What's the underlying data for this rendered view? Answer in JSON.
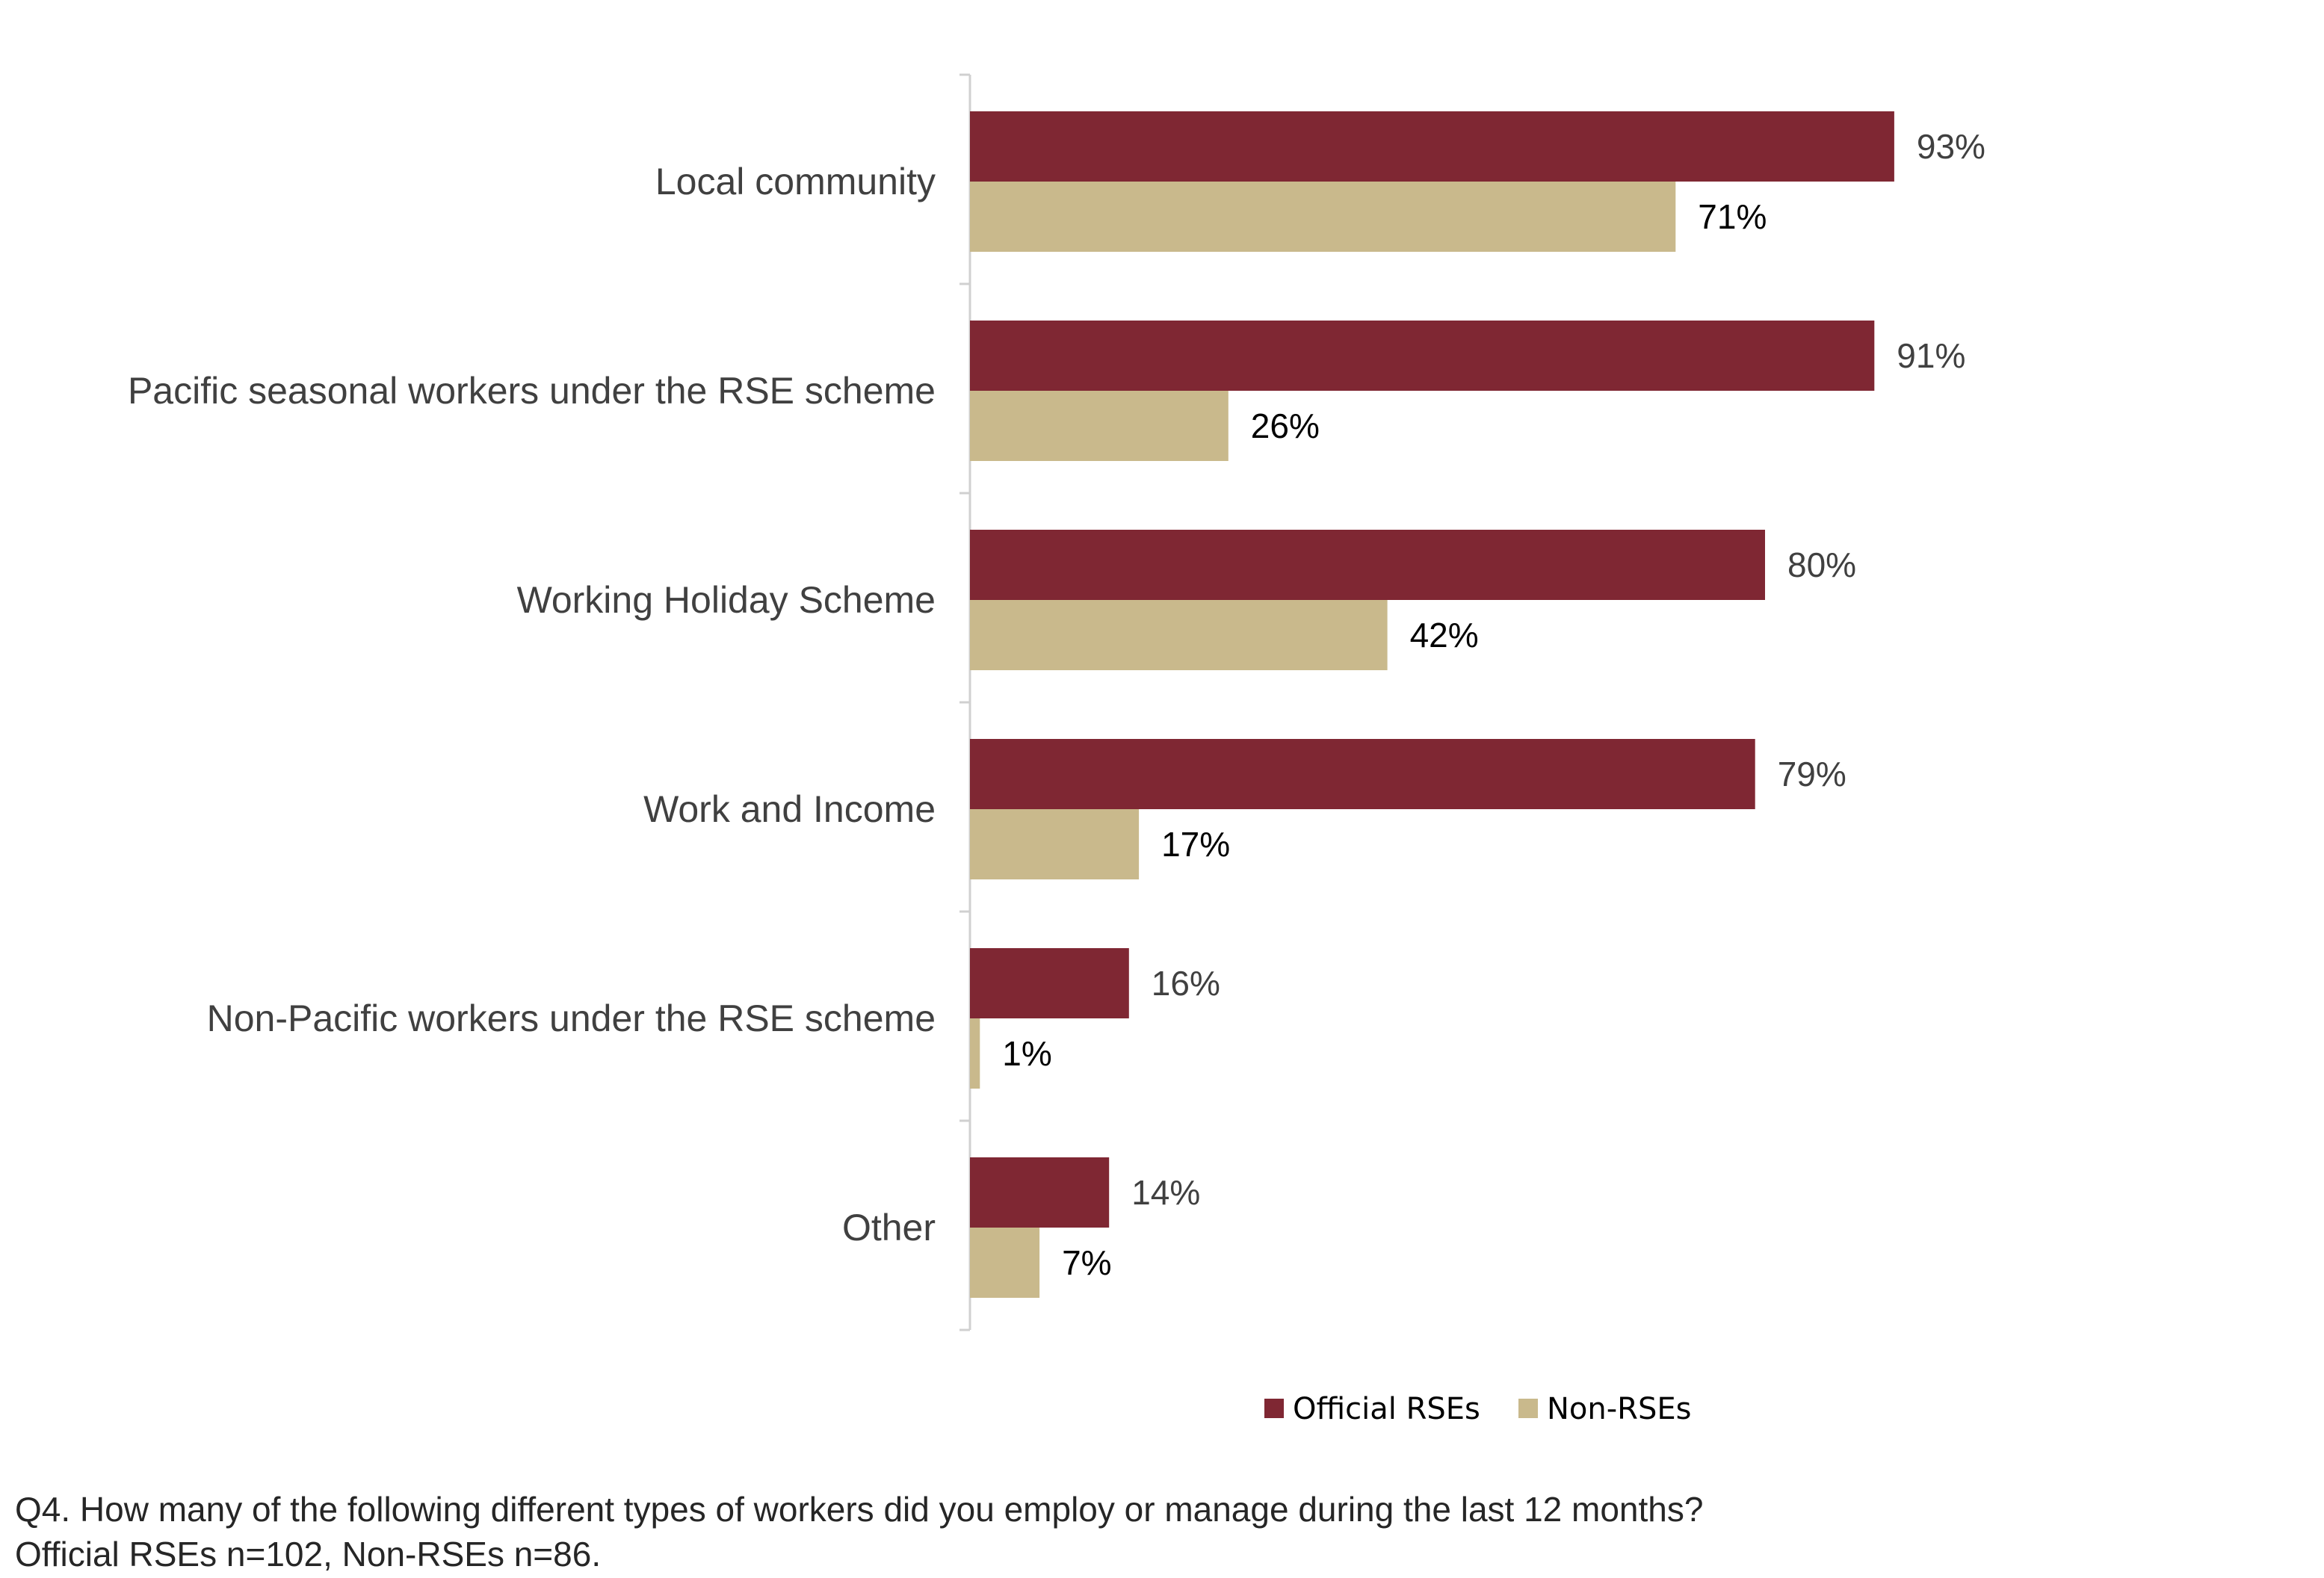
{
  "chart_data": {
    "type": "bar",
    "orientation": "horizontal",
    "categories": [
      "Local community",
      "Pacific seasonal workers under the RSE scheme",
      "Working Holiday Scheme",
      "Work and Income",
      "Non-Pacific workers under the RSE scheme",
      "Other"
    ],
    "series": [
      {
        "name": "Official RSEs",
        "color": "#7f2733",
        "values": [
          93,
          91,
          80,
          79,
          16,
          14
        ]
      },
      {
        "name": "Non-RSEs",
        "color": "#c9b98c",
        "values": [
          71,
          26,
          42,
          17,
          1,
          7
        ]
      }
    ],
    "value_suffix": "%",
    "xlim": [
      0,
      100
    ],
    "legend_position": "bottom",
    "grid": false
  },
  "footnote": {
    "line1": "Q4. How many of the following different types of workers did you employ or manage during the last 12 months?",
    "line2": "Official RSEs n=102, Non-RSEs n=86."
  }
}
